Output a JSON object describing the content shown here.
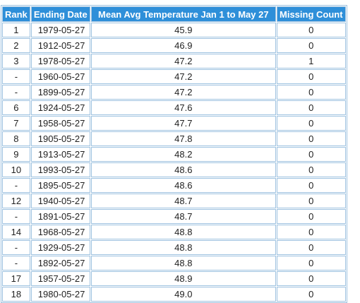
{
  "table": {
    "headers": {
      "rank": "Rank",
      "ending_date": "Ending Date",
      "mean_avg": "Mean Avg Temperature Jan 1 to May 27",
      "missing": "Missing Count"
    },
    "rows": [
      {
        "rank": "1",
        "date": "1979-05-27",
        "mean": "45.9",
        "missing": "0"
      },
      {
        "rank": "2",
        "date": "1912-05-27",
        "mean": "46.9",
        "missing": "0"
      },
      {
        "rank": "3",
        "date": "1978-05-27",
        "mean": "47.2",
        "missing": "1"
      },
      {
        "rank": "-",
        "date": "1960-05-27",
        "mean": "47.2",
        "missing": "0"
      },
      {
        "rank": "-",
        "date": "1899-05-27",
        "mean": "47.2",
        "missing": "0"
      },
      {
        "rank": "6",
        "date": "1924-05-27",
        "mean": "47.6",
        "missing": "0"
      },
      {
        "rank": "7",
        "date": "1958-05-27",
        "mean": "47.7",
        "missing": "0"
      },
      {
        "rank": "8",
        "date": "1905-05-27",
        "mean": "47.8",
        "missing": "0"
      },
      {
        "rank": "9",
        "date": "1913-05-27",
        "mean": "48.2",
        "missing": "0"
      },
      {
        "rank": "10",
        "date": "1993-05-27",
        "mean": "48.6",
        "missing": "0"
      },
      {
        "rank": "-",
        "date": "1895-05-27",
        "mean": "48.6",
        "missing": "0"
      },
      {
        "rank": "12",
        "date": "1940-05-27",
        "mean": "48.7",
        "missing": "0"
      },
      {
        "rank": "-",
        "date": "1891-05-27",
        "mean": "48.7",
        "missing": "0"
      },
      {
        "rank": "14",
        "date": "1968-05-27",
        "mean": "48.8",
        "missing": "0"
      },
      {
        "rank": "-",
        "date": "1929-05-27",
        "mean": "48.8",
        "missing": "0"
      },
      {
        "rank": "-",
        "date": "1892-05-27",
        "mean": "48.8",
        "missing": "0"
      },
      {
        "rank": "17",
        "date": "1957-05-27",
        "mean": "48.9",
        "missing": "0"
      },
      {
        "rank": "18",
        "date": "1980-05-27",
        "mean": "49.0",
        "missing": "0"
      }
    ]
  },
  "colors": {
    "header_bg": "#2e8fd9",
    "header_text": "#ffffff",
    "border": "#9ec2e0"
  }
}
